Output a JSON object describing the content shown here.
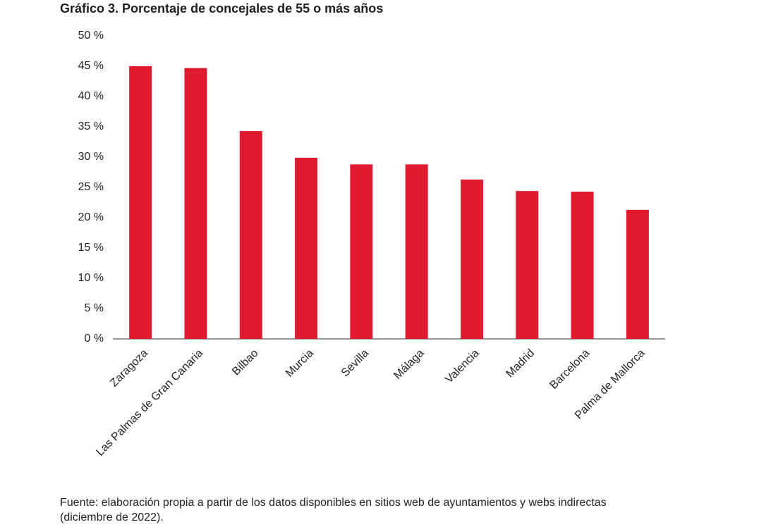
{
  "chart_data": {
    "type": "bar",
    "title": "Gráfico 3. Porcentaje de concejales de 55 o más años",
    "categories": [
      "Zaragoza",
      "Las Palmas de Gran Canaria",
      "Bilbao",
      "Murcia",
      "Sevilla",
      "Málaga",
      "Valencia",
      "Madrid",
      "Barcelona",
      "Palma de Mallorca"
    ],
    "values": [
      45.0,
      44.7,
      34.3,
      29.9,
      28.8,
      28.8,
      26.3,
      24.4,
      24.3,
      21.3
    ],
    "color": "#e01b2f",
    "ylim": [
      0,
      50
    ],
    "yticks": [
      {
        "value": 0,
        "label": "0 %"
      },
      {
        "value": 5,
        "label": "5 %"
      },
      {
        "value": 10,
        "label": "10 %"
      },
      {
        "value": 15,
        "label": "15 %"
      },
      {
        "value": 20,
        "label": "20 %"
      },
      {
        "value": 25,
        "label": "25 %"
      },
      {
        "value": 30,
        "label": "30 %"
      },
      {
        "value": 35,
        "label": "35 %"
      },
      {
        "value": 40,
        "label": "40 %"
      },
      {
        "value": 45,
        "label": "45 %"
      },
      {
        "value": 50,
        "label": "50 %"
      }
    ],
    "grid": false,
    "source": [
      "Fuente: elaboración propia a partir de los datos disponibles en sitios web de ayuntamientos y webs indirectas",
      "(diciembre de 2022)."
    ]
  }
}
